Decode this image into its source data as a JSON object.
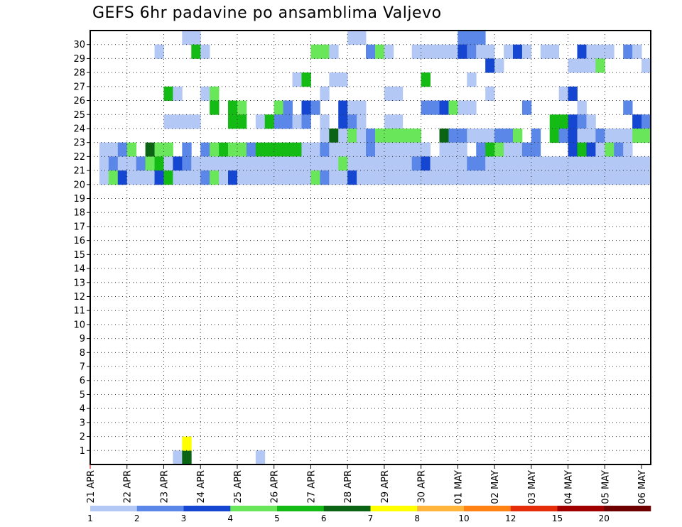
{
  "chart_data": {
    "type": "heatmap",
    "title": "GEFS 6hr padavine po ansamblima Valjevo",
    "xlabel": "",
    "ylabel": "",
    "x_tick_labels": [
      "21 APR",
      "22 APR",
      "23 APR",
      "24 APR",
      "25 APR",
      "26 APR",
      "27 APR",
      "28 APR",
      "29 APR",
      "30 APR",
      "01 MAY",
      "02 MAY",
      "03 MAY",
      "04 MAY",
      "05 MAY",
      "06 MAY"
    ],
    "y_tick_labels": [
      "1",
      "2",
      "3",
      "4",
      "5",
      "6",
      "7",
      "8",
      "9",
      "10",
      "11",
      "12",
      "13",
      "14",
      "15",
      "16",
      "17",
      "18",
      "19",
      "20",
      "21",
      "22",
      "23",
      "24",
      "25",
      "26",
      "27",
      "28",
      "29",
      "30"
    ],
    "x_steps": 61,
    "y_members": 31,
    "grid": true,
    "legend_position": "bottom",
    "colorbar": {
      "labels": [
        "1",
        "2",
        "3",
        "4",
        "5",
        "6",
        "7",
        "8",
        "10",
        "12",
        "15",
        "20"
      ],
      "colors": [
        "#b4c8f5",
        "#5a87e8",
        "#1446d2",
        "#6ae65a",
        "#14bb14",
        "#0a6414",
        "#ffff00",
        "#ffb43c",
        "#ff8214",
        "#e62d0a",
        "#a00000",
        "#6e0000"
      ]
    },
    "cells": [
      [
        9,
        0,
        1
      ],
      [
        10,
        0,
        6
      ],
      [
        10,
        1,
        7
      ],
      [
        18,
        0,
        1
      ],
      [
        10,
        30,
        1
      ],
      [
        11,
        30,
        1
      ],
      [
        28,
        30,
        1
      ],
      [
        29,
        30,
        1
      ],
      [
        40,
        30,
        2
      ],
      [
        41,
        30,
        2
      ],
      [
        42,
        30,
        2
      ],
      [
        7,
        29,
        1
      ],
      [
        11,
        29,
        5
      ],
      [
        12,
        29,
        1
      ],
      [
        24,
        29,
        4
      ],
      [
        25,
        29,
        4
      ],
      [
        26,
        29,
        1
      ],
      [
        30,
        29,
        2
      ],
      [
        31,
        29,
        4
      ],
      [
        32,
        29,
        1
      ],
      [
        35,
        29,
        1
      ],
      [
        36,
        29,
        1
      ],
      [
        37,
        29,
        1
      ],
      [
        38,
        29,
        1
      ],
      [
        39,
        29,
        1
      ],
      [
        40,
        29,
        3
      ],
      [
        41,
        29,
        2
      ],
      [
        42,
        29,
        1
      ],
      [
        43,
        29,
        1
      ],
      [
        45,
        29,
        1
      ],
      [
        46,
        29,
        3
      ],
      [
        47,
        29,
        1
      ],
      [
        49,
        29,
        1
      ],
      [
        50,
        29,
        1
      ],
      [
        53,
        29,
        3
      ],
      [
        54,
        29,
        1
      ],
      [
        55,
        29,
        1
      ],
      [
        56,
        29,
        1
      ],
      [
        58,
        29,
        2
      ],
      [
        59,
        29,
        1
      ],
      [
        43,
        28,
        3
      ],
      [
        44,
        28,
        1
      ],
      [
        52,
        28,
        1
      ],
      [
        53,
        28,
        1
      ],
      [
        54,
        28,
        1
      ],
      [
        55,
        28,
        4
      ],
      [
        60,
        28,
        1
      ],
      [
        22,
        27,
        1
      ],
      [
        23,
        27,
        5
      ],
      [
        26,
        27,
        1
      ],
      [
        27,
        27,
        1
      ],
      [
        36,
        27,
        5
      ],
      [
        41,
        27,
        1
      ],
      [
        8,
        26,
        5
      ],
      [
        9,
        26,
        1
      ],
      [
        12,
        26,
        1
      ],
      [
        13,
        26,
        4
      ],
      [
        25,
        26,
        1
      ],
      [
        32,
        26,
        1
      ],
      [
        33,
        26,
        1
      ],
      [
        43,
        26,
        1
      ],
      [
        51,
        26,
        1
      ],
      [
        52,
        26,
        3
      ],
      [
        13,
        25,
        5
      ],
      [
        15,
        25,
        5
      ],
      [
        16,
        25,
        4
      ],
      [
        20,
        25,
        4
      ],
      [
        21,
        25,
        2
      ],
      [
        23,
        25,
        3
      ],
      [
        24,
        25,
        2
      ],
      [
        27,
        25,
        3
      ],
      [
        28,
        25,
        1
      ],
      [
        29,
        25,
        1
      ],
      [
        36,
        25,
        2
      ],
      [
        37,
        25,
        2
      ],
      [
        38,
        25,
        3
      ],
      [
        39,
        25,
        4
      ],
      [
        40,
        25,
        1
      ],
      [
        41,
        25,
        1
      ],
      [
        47,
        25,
        2
      ],
      [
        53,
        25,
        1
      ],
      [
        58,
        25,
        2
      ],
      [
        8,
        24,
        1
      ],
      [
        9,
        24,
        1
      ],
      [
        10,
        24,
        1
      ],
      [
        11,
        24,
        1
      ],
      [
        15,
        24,
        5
      ],
      [
        16,
        24,
        5
      ],
      [
        18,
        24,
        1
      ],
      [
        19,
        24,
        5
      ],
      [
        20,
        24,
        2
      ],
      [
        21,
        24,
        2
      ],
      [
        22,
        24,
        1
      ],
      [
        23,
        24,
        2
      ],
      [
        25,
        24,
        1
      ],
      [
        27,
        24,
        3
      ],
      [
        28,
        24,
        2
      ],
      [
        29,
        24,
        1
      ],
      [
        32,
        24,
        1
      ],
      [
        33,
        24,
        1
      ],
      [
        50,
        24,
        5
      ],
      [
        51,
        24,
        5
      ],
      [
        52,
        24,
        3
      ],
      [
        53,
        24,
        2
      ],
      [
        54,
        24,
        1
      ],
      [
        59,
        24,
        3
      ],
      [
        60,
        24,
        2
      ],
      [
        25,
        23,
        1
      ],
      [
        26,
        23,
        6
      ],
      [
        27,
        23,
        1
      ],
      [
        28,
        23,
        4
      ],
      [
        29,
        23,
        1
      ],
      [
        30,
        23,
        2
      ],
      [
        31,
        23,
        4
      ],
      [
        32,
        23,
        4
      ],
      [
        33,
        23,
        4
      ],
      [
        34,
        23,
        4
      ],
      [
        35,
        23,
        4
      ],
      [
        38,
        23,
        6
      ],
      [
        39,
        23,
        2
      ],
      [
        40,
        23,
        2
      ],
      [
        41,
        23,
        1
      ],
      [
        42,
        23,
        1
      ],
      [
        43,
        23,
        1
      ],
      [
        44,
        23,
        2
      ],
      [
        45,
        23,
        2
      ],
      [
        46,
        23,
        4
      ],
      [
        48,
        23,
        2
      ],
      [
        50,
        23,
        5
      ],
      [
        51,
        23,
        2
      ],
      [
        52,
        23,
        3
      ],
      [
        53,
        23,
        1
      ],
      [
        54,
        23,
        1
      ],
      [
        55,
        23,
        2
      ],
      [
        56,
        23,
        1
      ],
      [
        57,
        23,
        1
      ],
      [
        58,
        23,
        1
      ],
      [
        59,
        23,
        4
      ],
      [
        60,
        23,
        4
      ],
      [
        1,
        22,
        1
      ],
      [
        2,
        22,
        1
      ],
      [
        3,
        22,
        2
      ],
      [
        4,
        22,
        4
      ],
      [
        6,
        22,
        6
      ],
      [
        7,
        22,
        4
      ],
      [
        8,
        22,
        4
      ],
      [
        10,
        22,
        2
      ],
      [
        12,
        22,
        2
      ],
      [
        13,
        22,
        4
      ],
      [
        14,
        22,
        5
      ],
      [
        15,
        22,
        4
      ],
      [
        16,
        22,
        4
      ],
      [
        17,
        22,
        2
      ],
      [
        18,
        22,
        5
      ],
      [
        19,
        22,
        5
      ],
      [
        20,
        22,
        5
      ],
      [
        21,
        22,
        5
      ],
      [
        22,
        22,
        5
      ],
      [
        23,
        22,
        1
      ],
      [
        24,
        22,
        1
      ],
      [
        25,
        22,
        2
      ],
      [
        26,
        22,
        1
      ],
      [
        27,
        22,
        1
      ],
      [
        28,
        22,
        1
      ],
      [
        29,
        22,
        1
      ],
      [
        30,
        22,
        2
      ],
      [
        31,
        22,
        1
      ],
      [
        32,
        22,
        1
      ],
      [
        33,
        22,
        1
      ],
      [
        34,
        22,
        1
      ],
      [
        35,
        22,
        1
      ],
      [
        36,
        22,
        1
      ],
      [
        38,
        22,
        1
      ],
      [
        39,
        22,
        1
      ],
      [
        40,
        22,
        1
      ],
      [
        42,
        22,
        2
      ],
      [
        43,
        22,
        5
      ],
      [
        44,
        22,
        4
      ],
      [
        45,
        22,
        1
      ],
      [
        46,
        22,
        1
      ],
      [
        47,
        22,
        2
      ],
      [
        48,
        22,
        2
      ],
      [
        52,
        22,
        3
      ],
      [
        53,
        22,
        5
      ],
      [
        54,
        22,
        3
      ],
      [
        55,
        22,
        1
      ],
      [
        56,
        22,
        4
      ],
      [
        57,
        22,
        2
      ],
      [
        58,
        22,
        1
      ],
      [
        1,
        21,
        1
      ],
      [
        2,
        21,
        2
      ],
      [
        3,
        21,
        1
      ],
      [
        4,
        21,
        1
      ],
      [
        5,
        21,
        2
      ],
      [
        6,
        21,
        4
      ],
      [
        7,
        21,
        5
      ],
      [
        8,
        21,
        1
      ],
      [
        9,
        21,
        3
      ],
      [
        10,
        21,
        2
      ],
      [
        11,
        21,
        1
      ],
      [
        12,
        21,
        1
      ],
      [
        13,
        21,
        1
      ],
      [
        14,
        21,
        1
      ],
      [
        15,
        21,
        1
      ],
      [
        16,
        21,
        1
      ],
      [
        17,
        21,
        1
      ],
      [
        18,
        21,
        1
      ],
      [
        19,
        21,
        1
      ],
      [
        20,
        21,
        1
      ],
      [
        21,
        21,
        1
      ],
      [
        22,
        21,
        1
      ],
      [
        23,
        21,
        1
      ],
      [
        24,
        21,
        1
      ],
      [
        25,
        21,
        1
      ],
      [
        26,
        21,
        1
      ],
      [
        27,
        21,
        4
      ],
      [
        28,
        21,
        1
      ],
      [
        29,
        21,
        1
      ],
      [
        30,
        21,
        1
      ],
      [
        31,
        21,
        1
      ],
      [
        32,
        21,
        1
      ],
      [
        33,
        21,
        1
      ],
      [
        34,
        21,
        1
      ],
      [
        35,
        21,
        2
      ],
      [
        36,
        21,
        3
      ],
      [
        37,
        21,
        1
      ],
      [
        38,
        21,
        1
      ],
      [
        39,
        21,
        1
      ],
      [
        40,
        21,
        1
      ],
      [
        41,
        21,
        2
      ],
      [
        42,
        21,
        2
      ],
      [
        43,
        21,
        1
      ],
      [
        44,
        21,
        1
      ],
      [
        45,
        21,
        1
      ],
      [
        46,
        21,
        1
      ],
      [
        47,
        21,
        1
      ],
      [
        48,
        21,
        1
      ],
      [
        49,
        21,
        1
      ],
      [
        50,
        21,
        1
      ],
      [
        51,
        21,
        1
      ],
      [
        52,
        21,
        1
      ],
      [
        53,
        21,
        1
      ],
      [
        54,
        21,
        1
      ],
      [
        55,
        21,
        1
      ],
      [
        56,
        21,
        1
      ],
      [
        57,
        21,
        1
      ],
      [
        58,
        21,
        1
      ],
      [
        59,
        21,
        1
      ],
      [
        60,
        21,
        1
      ],
      [
        1,
        20,
        1
      ],
      [
        2,
        20,
        4
      ],
      [
        3,
        20,
        3
      ],
      [
        4,
        20,
        1
      ],
      [
        5,
        20,
        1
      ],
      [
        6,
        20,
        1
      ],
      [
        7,
        20,
        3
      ],
      [
        8,
        20,
        5
      ],
      [
        9,
        20,
        1
      ],
      [
        10,
        20,
        1
      ],
      [
        11,
        20,
        1
      ],
      [
        12,
        20,
        2
      ],
      [
        13,
        20,
        4
      ],
      [
        14,
        20,
        1
      ],
      [
        15,
        20,
        3
      ],
      [
        16,
        20,
        1
      ],
      [
        17,
        20,
        1
      ],
      [
        18,
        20,
        1
      ],
      [
        19,
        20,
        1
      ],
      [
        20,
        20,
        1
      ],
      [
        21,
        20,
        1
      ],
      [
        22,
        20,
        1
      ],
      [
        23,
        20,
        1
      ],
      [
        24,
        20,
        4
      ],
      [
        25,
        20,
        2
      ],
      [
        26,
        20,
        1
      ],
      [
        27,
        20,
        1
      ],
      [
        28,
        20,
        3
      ],
      [
        29,
        20,
        1
      ],
      [
        30,
        20,
        1
      ],
      [
        31,
        20,
        1
      ],
      [
        32,
        20,
        1
      ],
      [
        33,
        20,
        1
      ],
      [
        34,
        20,
        1
      ],
      [
        35,
        20,
        1
      ],
      [
        36,
        20,
        1
      ],
      [
        37,
        20,
        1
      ],
      [
        38,
        20,
        1
      ],
      [
        39,
        20,
        1
      ],
      [
        40,
        20,
        1
      ],
      [
        41,
        20,
        1
      ],
      [
        42,
        20,
        1
      ],
      [
        43,
        20,
        1
      ],
      [
        44,
        20,
        1
      ],
      [
        45,
        20,
        1
      ],
      [
        46,
        20,
        1
      ],
      [
        47,
        20,
        1
      ],
      [
        48,
        20,
        1
      ],
      [
        49,
        20,
        1
      ],
      [
        50,
        20,
        1
      ],
      [
        51,
        20,
        1
      ],
      [
        52,
        20,
        1
      ],
      [
        53,
        20,
        1
      ],
      [
        54,
        20,
        1
      ],
      [
        55,
        20,
        1
      ],
      [
        56,
        20,
        1
      ],
      [
        57,
        20,
        1
      ],
      [
        58,
        20,
        1
      ],
      [
        59,
        20,
        1
      ],
      [
        60,
        20,
        1
      ]
    ]
  }
}
